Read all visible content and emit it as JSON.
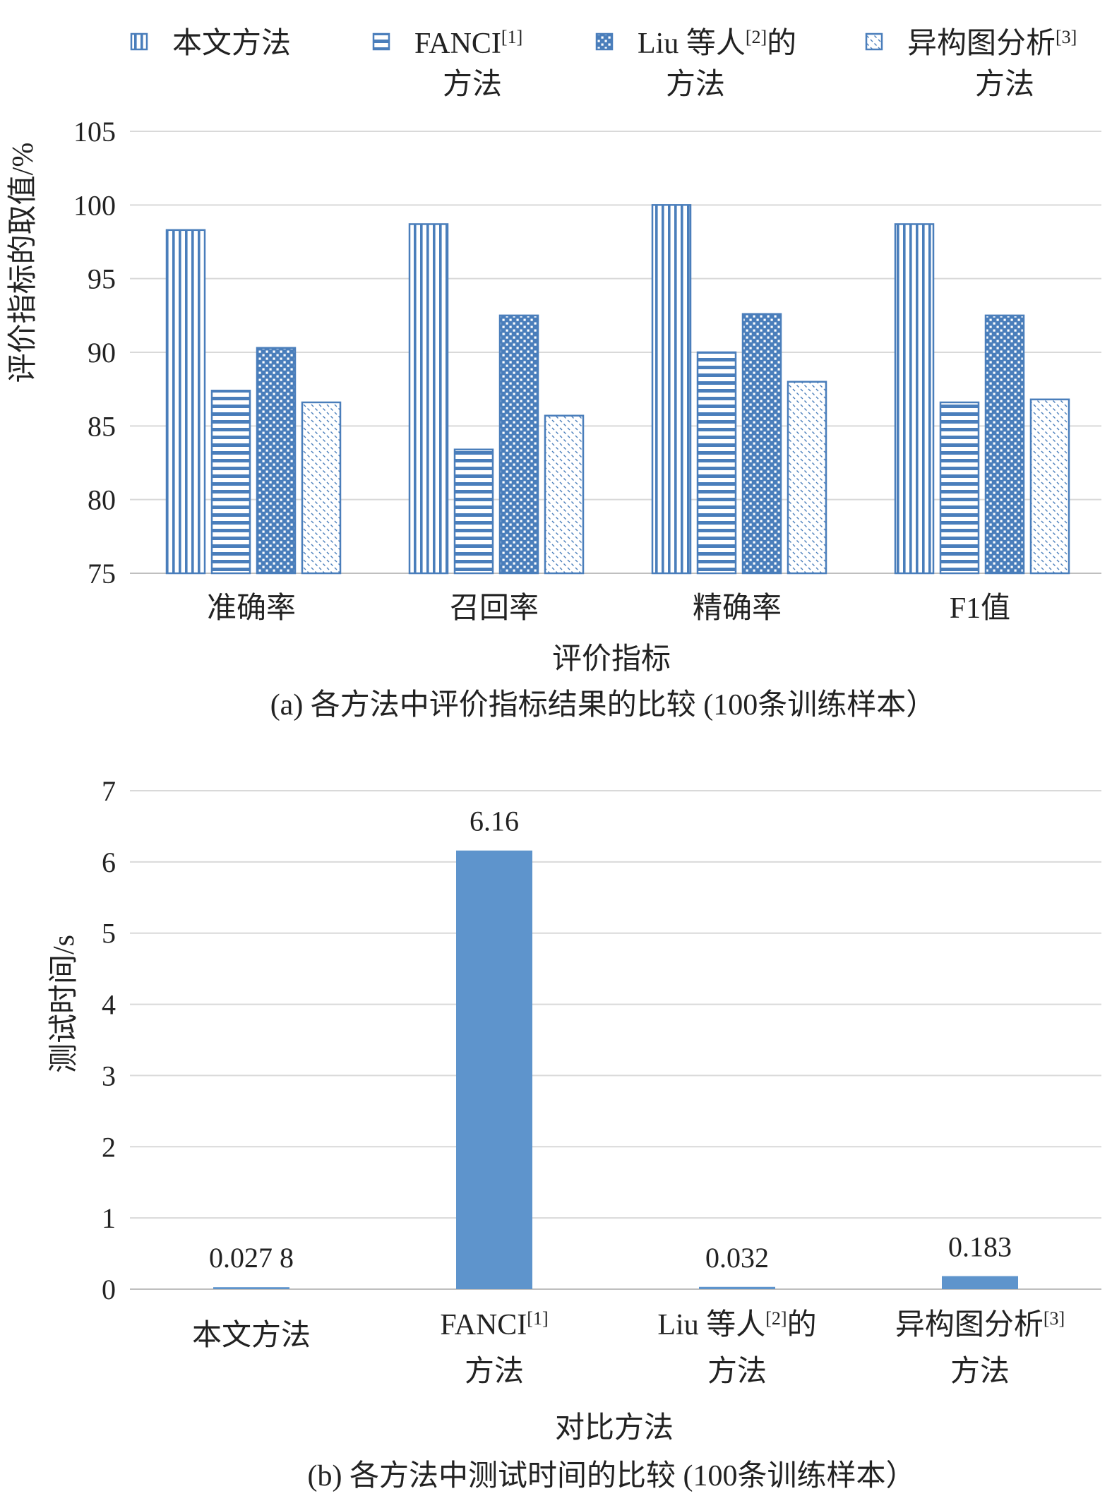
{
  "chart_data": [
    {
      "type": "bar",
      "categories": [
        "准确率",
        "召回率",
        "精确率",
        "F1值"
      ],
      "series": [
        {
          "name": "本文方法",
          "pattern": "vertical",
          "values": [
            98.3,
            98.7,
            100.0,
            98.7
          ]
        },
        {
          "name": "FANCI[1]方法",
          "pattern": "horizontal",
          "values": [
            87.4,
            83.4,
            90.0,
            86.6
          ]
        },
        {
          "name": "Liu 等人[2]的方法",
          "pattern": "dots",
          "values": [
            90.3,
            92.5,
            92.6,
            92.5
          ]
        },
        {
          "name": "异构图分析[3]方法",
          "pattern": "diagonal",
          "values": [
            86.6,
            85.7,
            88.0,
            86.8
          ]
        }
      ],
      "legend": {
        "position": "top",
        "items": [
          {
            "line1": "本文方法",
            "line2": "",
            "sup": "",
            "suffix": ""
          },
          {
            "line1": "FANCI",
            "sup": "[1]",
            "suffix": "",
            "line2": "方法"
          },
          {
            "line1": "Liu 等人",
            "sup": "[2]",
            "suffix": "的",
            "line2": "方法"
          },
          {
            "line1": "异构图分析",
            "sup": "[3]",
            "suffix": "",
            "line2": "方法"
          }
        ]
      },
      "xlabel": "评价指标",
      "ylabel": "评价指标的取值/%",
      "ylim": [
        75,
        105
      ],
      "yticks": [
        "75",
        "80",
        "85",
        "90",
        "95",
        "100",
        "105"
      ],
      "caption": "(a) 各方法中评价指标结果的比较 (100条训练样本）",
      "grid": true,
      "color": "#4a7ebb"
    },
    {
      "type": "bar",
      "categories": [
        {
          "line1": "本文方法",
          "sup": "",
          "suffix": "",
          "line2": ""
        },
        {
          "line1": "FANCI",
          "sup": "[1]",
          "suffix": "",
          "line2": "方法"
        },
        {
          "line1": "Liu 等人",
          "sup": "[2]",
          "suffix": "的",
          "line2": "方法"
        },
        {
          "line1": "异构图分析",
          "sup": "[3]",
          "suffix": "",
          "line2": "方法"
        }
      ],
      "values": [
        0.0278,
        6.16,
        0.032,
        0.183
      ],
      "data_labels": [
        "0.027 8",
        "6.16",
        "0.032",
        "0.183"
      ],
      "xlabel": "对比方法",
      "ylabel": "测试时间/s",
      "ylim": [
        0,
        7
      ],
      "yticks": [
        "0",
        "1",
        "2",
        "3",
        "4",
        "5",
        "6",
        "7"
      ],
      "caption": "(b) 各方法中测试时间的比较 (100条训练样本）",
      "grid": true,
      "color": "#5e94cc"
    }
  ]
}
